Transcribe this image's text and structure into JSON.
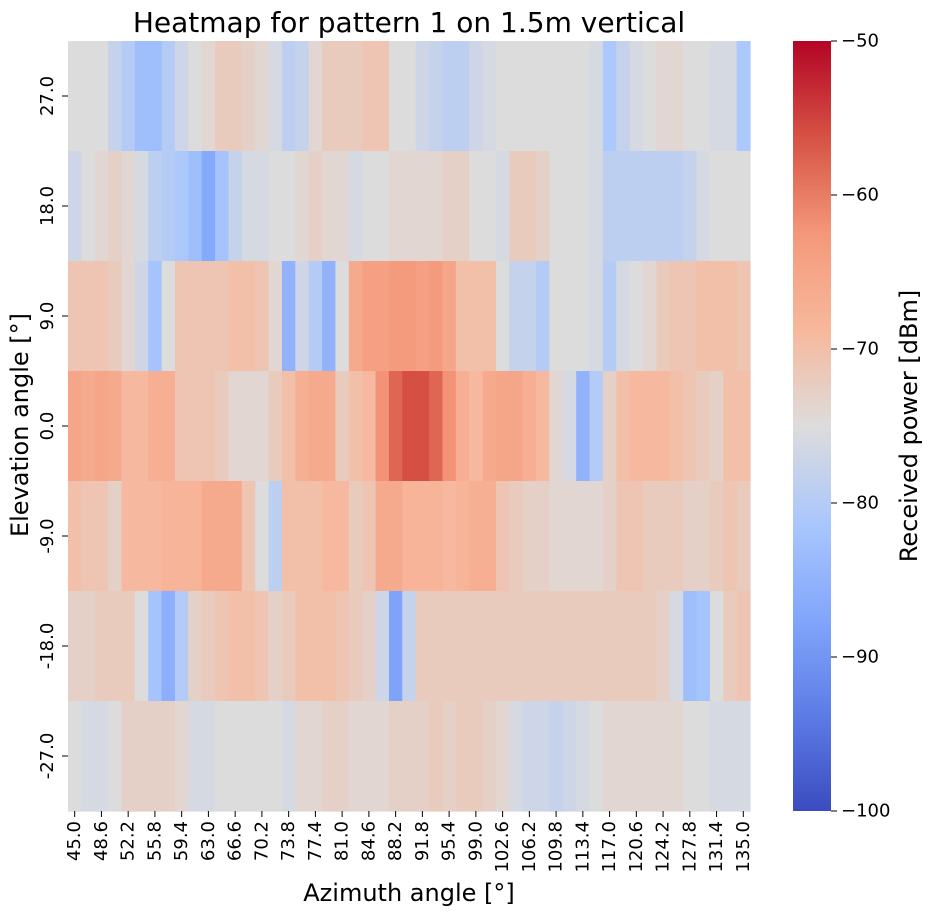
{
  "chart_data": {
    "type": "heatmap",
    "title": "Heatmap for pattern 1 on 1.5m vertical",
    "xlabel": "Azimuth angle [°]",
    "ylabel": "Elevation angle [°]",
    "x": [
      45.0,
      46.8,
      48.6,
      50.4,
      52.2,
      54.0,
      55.8,
      57.6,
      59.4,
      61.2,
      63.0,
      64.8,
      66.6,
      68.4,
      70.2,
      72.0,
      73.8,
      75.6,
      77.4,
      79.2,
      81.0,
      82.8,
      84.6,
      86.4,
      88.2,
      90.0,
      91.8,
      93.6,
      95.4,
      97.2,
      99.0,
      100.8,
      102.6,
      104.4,
      106.2,
      108.0,
      109.8,
      111.6,
      113.4,
      115.2,
      117.0,
      118.8,
      120.6,
      122.4,
      124.2,
      126.0,
      127.8,
      129.6,
      131.4,
      133.2,
      135.0
    ],
    "x_tick_labels": [
      "45.0",
      "48.6",
      "52.2",
      "55.8",
      "59.4",
      "63.0",
      "66.6",
      "70.2",
      "73.8",
      "77.4",
      "81.0",
      "84.6",
      "88.2",
      "91.8",
      "95.4",
      "99.0",
      "102.6",
      "106.2",
      "109.8",
      "113.4",
      "117.0",
      "120.6",
      "124.2",
      "127.8",
      "131.4",
      "135.0"
    ],
    "y": [
      27.0,
      18.0,
      9.0,
      0.0,
      -9.0,
      -18.0,
      -27.0
    ],
    "y_tick_labels": [
      "27.0",
      "18.0",
      "9.0",
      "0.0",
      "-9.0",
      "-18.0",
      "-27.0"
    ],
    "values": [
      [
        -75,
        -75,
        -75,
        -78,
        -80,
        -83,
        -83,
        -80,
        -77,
        -75,
        -74,
        -72,
        -72,
        -73,
        -74,
        -76,
        -79,
        -78,
        -74,
        -72,
        -72,
        -72,
        -71,
        -71,
        -75,
        -75,
        -77,
        -78,
        -79,
        -79,
        -77,
        -76,
        -75,
        -75,
        -75,
        -75,
        -75,
        -75,
        -75,
        -76,
        -81,
        -78,
        -76,
        -75,
        -74,
        -74,
        -75,
        -75,
        -76,
        -76,
        -81
      ],
      [
        -77,
        -75,
        -74,
        -73,
        -74,
        -76,
        -79,
        -80,
        -81,
        -83,
        -87,
        -82,
        -78,
        -76,
        -76,
        -75,
        -75,
        -74,
        -73,
        -74,
        -74,
        -76,
        -75,
        -75,
        -74,
        -74,
        -74,
        -74,
        -73,
        -73,
        -75,
        -75,
        -76,
        -72,
        -72,
        -73,
        -75,
        -75,
        -75,
        -76,
        -79,
        -79,
        -79,
        -79,
        -79,
        -79,
        -78,
        -76,
        -75,
        -75,
        -75
      ],
      [
        -71,
        -71,
        -71,
        -72,
        -74,
        -77,
        -82,
        -75,
        -71,
        -71,
        -71,
        -71,
        -70,
        -70,
        -71,
        -74,
        -85,
        -77,
        -80,
        -85,
        -75,
        -66,
        -64,
        -64,
        -63,
        -63,
        -64,
        -63,
        -65,
        -70,
        -70,
        -70,
        -75,
        -78,
        -78,
        -80,
        -75,
        -75,
        -75,
        -76,
        -80,
        -76,
        -75,
        -74,
        -72,
        -71,
        -71,
        -70,
        -70,
        -70,
        -71
      ],
      [
        -65,
        -66,
        -65,
        -66,
        -69,
        -69,
        -67,
        -67,
        -71,
        -71,
        -71,
        -72,
        -74,
        -74,
        -74,
        -72,
        -70,
        -67,
        -66,
        -66,
        -72,
        -70,
        -69,
        -62,
        -58,
        -56,
        -56,
        -58,
        -62,
        -67,
        -69,
        -66,
        -65,
        -65,
        -67,
        -69,
        -74,
        -76,
        -85,
        -80,
        -73,
        -70,
        -69,
        -69,
        -69,
        -70,
        -71,
        -72,
        -73,
        -70,
        -70
      ],
      [
        -70,
        -71,
        -71,
        -73,
        -69,
        -69,
        -69,
        -68,
        -68,
        -68,
        -66,
        -66,
        -66,
        -71,
        -75,
        -79,
        -70,
        -70,
        -70,
        -69,
        -69,
        -72,
        -71,
        -66,
        -66,
        -68,
        -68,
        -68,
        -69,
        -68,
        -67,
        -67,
        -71,
        -72,
        -73,
        -73,
        -74,
        -74,
        -74,
        -74,
        -73,
        -71,
        -71,
        -72,
        -72,
        -72,
        -73,
        -73,
        -72,
        -71,
        -72
      ],
      [
        -73,
        -73,
        -72,
        -72,
        -72,
        -75,
        -82,
        -86,
        -80,
        -73,
        -72,
        -71,
        -70,
        -70,
        -71,
        -73,
        -72,
        -70,
        -70,
        -70,
        -71,
        -72,
        -73,
        -77,
        -88,
        -78,
        -72,
        -72,
        -72,
        -72,
        -72,
        -72,
        -72,
        -72,
        -72,
        -72,
        -72,
        -72,
        -72,
        -72,
        -72,
        -72,
        -72,
        -72,
        -73,
        -76,
        -83,
        -82,
        -75,
        -72,
        -71
      ],
      [
        -75,
        -76,
        -76,
        -75,
        -73,
        -73,
        -73,
        -73,
        -74,
        -76,
        -76,
        -75,
        -75,
        -75,
        -75,
        -75,
        -76,
        -74,
        -74,
        -73,
        -73,
        -74,
        -74,
        -74,
        -73,
        -73,
        -73,
        -72,
        -73,
        -72,
        -72,
        -73,
        -74,
        -76,
        -77,
        -77,
        -78,
        -77,
        -76,
        -75,
        -74,
        -74,
        -74,
        -74,
        -74,
        -74,
        -75,
        -75,
        -76,
        -76,
        -76
      ]
    ],
    "colorbar": {
      "label": "Received power [dBm]",
      "range": [
        -100,
        -50
      ],
      "ticks": [
        "−50",
        "−60",
        "−70",
        "−80",
        "−90",
        "−100"
      ],
      "tick_values": [
        -50,
        -60,
        -70,
        -80,
        -90,
        -100
      ],
      "colormap": "coolwarm"
    },
    "grid": false
  }
}
